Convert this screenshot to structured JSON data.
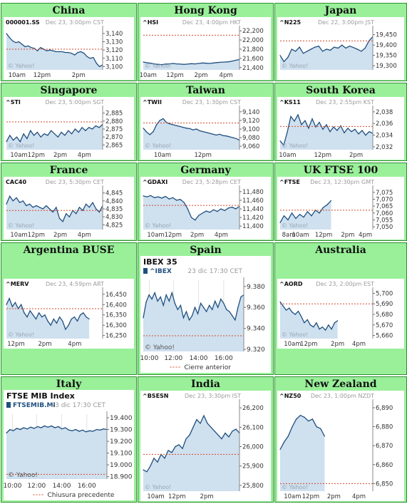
{
  "colors": {
    "panel_bg": "#99f099",
    "chart_bg": "#ffffff",
    "line": "#1f4f7f",
    "fill": "#cfe0ef",
    "prev_close": "#d24b2b",
    "muted": "#9a9a9a"
  },
  "charts": [
    {
      "title": "China",
      "symbol": "000001.SS",
      "stamp": "Dec 23, 3:00pm CST",
      "y_ticks": [
        "3,140",
        "3,130",
        "3,120",
        "3,110",
        "3,100"
      ],
      "ylim": [
        3096,
        3146
      ],
      "x_ticks": [
        {
          "label": "10am",
          "at": 0.02
        },
        {
          "label": "12pm",
          "at": 0.37
        },
        {
          "label": "2pm",
          "at": 0.75
        }
      ],
      "prev": 3121,
      "points": [
        3140,
        3135,
        3131,
        3129,
        3130,
        3127,
        3124,
        3125,
        3123,
        3122,
        3119,
        3123,
        3121,
        3119,
        3120,
        3119,
        3118,
        3118,
        3118,
        3117,
        3117,
        3116,
        3114,
        3117,
        3118,
        3116,
        3112,
        3110,
        3111,
        3104,
        3100,
        3102
      ],
      "watermark": "© Yahoo!",
      "type": "area"
    },
    {
      "title": "Hong Kong",
      "symbol": "^HSI",
      "stamp": "Dec 23, 4:00pm HKT",
      "y_ticks": [
        "22,200",
        "22,000",
        "21,800",
        "21,600",
        "21,400"
      ],
      "ylim": [
        21350,
        22250
      ],
      "x_ticks": [
        {
          "label": "10am",
          "at": 0.05
        },
        {
          "label": "12pm",
          "at": 0.33
        },
        {
          "label": "2pm",
          "at": 0.6
        },
        {
          "label": "4pm",
          "at": 0.86
        }
      ],
      "prev": 22105,
      "points": [
        21520,
        21505,
        21495,
        21480,
        21470,
        21465,
        21475,
        21480,
        21490,
        21480,
        21475,
        21470,
        21475,
        21485,
        21480,
        21490,
        21500,
        21495,
        21490,
        21500,
        21510,
        21515,
        21520,
        21525,
        21540,
        21560,
        21575
      ],
      "watermark": "© Yahoo!",
      "type": "area"
    },
    {
      "title": "Japan",
      "symbol": "^N225",
      "stamp": "Dec 22, 3:00pm JST",
      "y_ticks": [
        "19,450",
        "19,400",
        "19,350",
        "19,300"
      ],
      "ylim": [
        19280,
        19480
      ],
      "x_ticks": [],
      "prev": 19420,
      "points": [
        19350,
        19320,
        19340,
        19380,
        19370,
        19390,
        19360,
        19370,
        19380,
        19390,
        19395,
        19370,
        19380,
        19375,
        19390,
        19385,
        19400,
        19385,
        19395,
        19388,
        19380,
        19370,
        19385,
        19420,
        19440
      ],
      "watermark": "© Yahoo!",
      "type": "area"
    },
    {
      "title": "Singapore",
      "symbol": "^STI",
      "stamp": "Dec 23, 5:00pm SGT",
      "y_ticks": [
        "2,885",
        "2,880",
        "2,875",
        "2,870",
        "2,865"
      ],
      "ylim": [
        2862,
        2888
      ],
      "x_ticks": [
        {
          "label": "10am",
          "at": 0.04
        },
        {
          "label": "12pm",
          "at": 0.31
        },
        {
          "label": "2pm",
          "at": 0.56
        },
        {
          "label": "4pm",
          "at": 0.81
        }
      ],
      "prev": 2879.5,
      "points": [
        2867,
        2871,
        2868,
        2870,
        2867,
        2872,
        2869,
        2874,
        2871,
        2873,
        2870,
        2872,
        2871,
        2874,
        2872,
        2870,
        2873,
        2871,
        2874,
        2872,
        2875,
        2873,
        2876,
        2874,
        2876,
        2875,
        2877,
        2876,
        2878
      ],
      "watermark": "© Yahoo!",
      "type": "area"
    },
    {
      "title": "Taiwan",
      "symbol": "^TWII",
      "stamp": "Dec 23, 1:30pm CST",
      "y_ticks": [
        "9,140",
        "9,120",
        "9,100",
        "9,080",
        "9,060"
      ],
      "ylim": [
        9052,
        9148
      ],
      "x_ticks": [
        {
          "label": "10am",
          "at": 0.2
        },
        {
          "label": "12pm",
          "at": 0.62
        }
      ],
      "prev": 9114,
      "points": [
        9102,
        9093,
        9087,
        9094,
        9110,
        9120,
        9124,
        9115,
        9112,
        9110,
        9108,
        9106,
        9104,
        9102,
        9101,
        9098,
        9100,
        9096,
        9094,
        9092,
        9090,
        9088,
        9086,
        9088,
        9085,
        9084,
        9082,
        9080,
        9078,
        9074
      ],
      "watermark": "© Yahoo!",
      "type": "area"
    },
    {
      "title": "South Korea",
      "symbol": "^KS11",
      "stamp": "Dec 23, 2:55pm KST",
      "y_ticks": [
        "2,038",
        "2,036",
        "2,034",
        "2,032"
      ],
      "ylim": [
        2031.5,
        2038.6
      ],
      "x_ticks": [
        {
          "label": "10am",
          "at": 0.08
        },
        {
          "label": "12pm",
          "at": 0.46
        },
        {
          "label": "2pm",
          "at": 0.82
        }
      ],
      "prev": 2035.5,
      "points": [
        2033,
        2032.3,
        2034.5,
        2037.2,
        2036.4,
        2037.5,
        2035.8,
        2036.5,
        2035.2,
        2036.8,
        2035.4,
        2036.2,
        2035,
        2035.8,
        2034.6,
        2035.4,
        2034.8,
        2035.6,
        2034.4,
        2035.2,
        2034.6,
        2035,
        2034.2,
        2034.8,
        2034,
        2034.6,
        2034.3
      ],
      "watermark": "© Yahoo!",
      "type": "area"
    },
    {
      "title": "France",
      "symbol": "CAC40",
      "stamp": "Dec 23, 5:30pm CET",
      "y_ticks": [
        "4,845",
        "4,840",
        "4,835",
        "4,830",
        "4,825"
      ],
      "ylim": [
        4822,
        4848
      ],
      "x_ticks": [
        {
          "label": "10am",
          "at": 0.04
        },
        {
          "label": "12pm",
          "at": 0.31
        },
        {
          "label": "2pm",
          "at": 0.56
        },
        {
          "label": "4pm",
          "at": 0.81
        }
      ],
      "prev": 4834,
      "points": [
        4838,
        4843,
        4840,
        4842,
        4839,
        4840,
        4837,
        4838,
        4836,
        4837,
        4836,
        4835,
        4837,
        4835,
        4833,
        4836,
        4829,
        4827,
        4832,
        4830,
        4834,
        4832,
        4836,
        4834,
        4838,
        4836,
        4839,
        4835,
        4833,
        4837
      ],
      "watermark": "© Yahoo!",
      "type": "area"
    },
    {
      "title": "Germany",
      "symbol": "^GDAXI",
      "stamp": "Dec 23, 5:28pm CET",
      "y_ticks": [
        "11,480",
        "11,460",
        "11,440",
        "11,420",
        "11,400"
      ],
      "ylim": [
        11392,
        11488
      ],
      "x_ticks": [
        {
          "label": "10am",
          "at": 0.04
        },
        {
          "label": "12pm",
          "at": 0.31
        },
        {
          "label": "2pm",
          "at": 0.56
        },
        {
          "label": "4pm",
          "at": 0.81
        }
      ],
      "prev": 11448,
      "points": [
        11470,
        11468,
        11471,
        11466,
        11468,
        11465,
        11469,
        11463,
        11466,
        11460,
        11462,
        11455,
        11440,
        11420,
        11414,
        11425,
        11430,
        11435,
        11432,
        11438,
        11434,
        11440,
        11436,
        11442,
        11444,
        11440,
        11446
      ],
      "watermark": "© Yahoo!",
      "type": "area"
    },
    {
      "title": "UK FTSE 100",
      "symbol": "^FTSE",
      "stamp": "Dec 23, 12:30pm GMT",
      "y_ticks": [
        "7,075",
        "7,070",
        "7,065",
        "7,060",
        "7,055",
        "7,050"
      ],
      "ylim": [
        7048,
        7078
      ],
      "x_ticks": [
        {
          "label": "8am",
          "at": 0.02
        },
        {
          "label": "10am",
          "at": 0.22
        },
        {
          "label": "12pm",
          "at": 0.47
        },
        {
          "label": "2pm",
          "at": 0.73
        },
        {
          "label": "4pm",
          "at": 0.92
        }
      ],
      "prev": 7062,
      "points": [
        7053,
        7058,
        7055,
        7060,
        7056,
        7059,
        7057,
        7061,
        7058,
        7062,
        7060,
        7064,
        7066,
        7069
      ],
      "xspan": 0.55,
      "watermark": "© Yahoo!",
      "type": "area"
    },
    {
      "title": "Argentina BUSE",
      "symbol": "^MERV",
      "stamp": "Dec 23, 4:59pm ART",
      "y_ticks": [
        "16,450",
        "16,400",
        "16,350",
        "16,300",
        "16,250"
      ],
      "ylim": [
        16235,
        16470
      ],
      "x_ticks": [
        {
          "label": "12pm",
          "at": 0.1
        },
        {
          "label": "2pm",
          "at": 0.4
        },
        {
          "label": "4pm",
          "at": 0.71
        }
      ],
      "prev": 16380,
      "points": [
        16400,
        16430,
        16390,
        16410,
        16380,
        16400,
        16360,
        16340,
        16370,
        16350,
        16330,
        16360,
        16340,
        16350,
        16320,
        16300,
        16330,
        16310,
        16340,
        16320,
        16280,
        16300,
        16330,
        16340,
        16320,
        16350,
        16360,
        16340,
        16330
      ],
      "xspan": 0.86,
      "watermark": "© Yahoo!",
      "type": "area"
    },
    {
      "title": "Spain",
      "heading": "IBEX 35",
      "symbol": "^IBEX",
      "stamp": "23 dic 17:30 CET",
      "y_ticks": [
        "9.380",
        "9.360",
        "9.340",
        "9.320"
      ],
      "ylim": [
        9318,
        9386
      ],
      "x_ticks": [
        {
          "label": "10:00",
          "at": 0.06
        },
        {
          "label": "12:00",
          "at": 0.3
        },
        {
          "label": "14:00",
          "at": 0.55
        },
        {
          "label": "16:00",
          "at": 0.8
        }
      ],
      "prev": 9333,
      "points": [
        9350,
        9365,
        9372,
        9368,
        9374,
        9366,
        9370,
        9362,
        9372,
        9366,
        9374,
        9364,
        9358,
        9362,
        9350,
        9356,
        9348,
        9352,
        9360,
        9354,
        9364,
        9360,
        9356,
        9362,
        9358,
        9366,
        9360,
        9368,
        9364,
        9358,
        9356,
        9352,
        9348,
        9360,
        9370,
        9372
      ],
      "watermark": "© Yahoo!",
      "legend": "Cierre anterior",
      "type": "area2"
    },
    {
      "title": "Australia",
      "symbol": "^AORD",
      "stamp": "Dec 23, 2:00pm EST",
      "y_ticks": [
        "5,700",
        "5,690",
        "5,680",
        "5,670",
        "5,660"
      ],
      "ylim": [
        5657,
        5703
      ],
      "x_ticks": [
        {
          "label": "10am",
          "at": 0.04
        },
        {
          "label": "12pm",
          "at": 0.31
        },
        {
          "label": "2pm",
          "at": 0.62
        },
        {
          "label": "4pm",
          "at": 0.85
        }
      ],
      "prev": 5690,
      "points": [
        5692,
        5688,
        5684,
        5686,
        5682,
        5680,
        5683,
        5678,
        5672,
        5675,
        5670,
        5668,
        5672,
        5666,
        5668,
        5665,
        5670,
        5666,
        5672,
        5674
      ],
      "xspan": 0.62,
      "watermark": "© Yahoo!",
      "type": "area"
    },
    {
      "title": "Italy",
      "heading": "FTSE MIB Index",
      "symbol": "FTSEMIB.MI",
      "stamp": "23 dic 17:30 CET",
      "y_ticks": [
        "19.400",
        "19.300",
        "19.200",
        "19.100",
        "19.000",
        "18.900"
      ],
      "ylim": [
        18880,
        19430
      ],
      "x_ticks": [
        {
          "label": "10:00",
          "at": 0.06
        },
        {
          "label": "12:00",
          "at": 0.3
        },
        {
          "label": "14:00",
          "at": 0.55
        },
        {
          "label": "16:00",
          "at": 0.8
        }
      ],
      "prev": 18920,
      "points": [
        19270,
        19300,
        19290,
        19310,
        19300,
        19315,
        19305,
        19320,
        19310,
        19325,
        19315,
        19330,
        19320,
        19330,
        19315,
        19325,
        19305,
        19315,
        19295,
        19290,
        19300,
        19285,
        19295,
        19280,
        19290,
        19285,
        19300,
        19295,
        19305,
        19300
      ],
      "watermark": "© Yahoo!",
      "legend": "Chiusura precedente",
      "type": "area2"
    },
    {
      "title": "India",
      "symbol": "^BSESN",
      "stamp": "Dec 23, 3:30pm IST",
      "y_ticks": [
        "26,200",
        "26,100",
        "26,000",
        "25,900",
        "25,800"
      ],
      "ylim": [
        25770,
        26230
      ],
      "x_ticks": [
        {
          "label": "10am",
          "at": 0.04
        },
        {
          "label": "12pm",
          "at": 0.35
        },
        {
          "label": "2pm",
          "at": 0.66
        }
      ],
      "prev": 25960,
      "points": [
        25880,
        25870,
        25900,
        25940,
        25920,
        25960,
        25940,
        25980,
        25970,
        26000,
        26010,
        25990,
        26040,
        26060,
        26100,
        26140,
        26120,
        26160,
        26120,
        26100,
        26080,
        26060,
        26040,
        26070,
        26050,
        26080,
        26090,
        26070
      ],
      "watermark": "© Yahoo!",
      "type": "area"
    },
    {
      "title": "New Zealand",
      "symbol": "^NZ50",
      "stamp": "Dec 23, 1:00pm NZDT",
      "y_ticks": [
        "6,890",
        "6,880",
        "6,870",
        "6,860",
        "6,850"
      ],
      "ylim": [
        6846,
        6893
      ],
      "x_ticks": [
        {
          "label": "10am",
          "at": 0.04
        },
        {
          "label": "12pm",
          "at": 0.33
        },
        {
          "label": "2pm",
          "at": 0.58
        },
        {
          "label": "4pm",
          "at": 0.85
        }
      ],
      "prev": 6850,
      "points": [
        6868,
        6872,
        6875,
        6880,
        6884,
        6886,
        6885,
        6883,
        6884,
        6880,
        6879,
        6875
      ],
      "xspan": 0.48,
      "watermark": "© Yahoo!",
      "type": "area"
    }
  ]
}
